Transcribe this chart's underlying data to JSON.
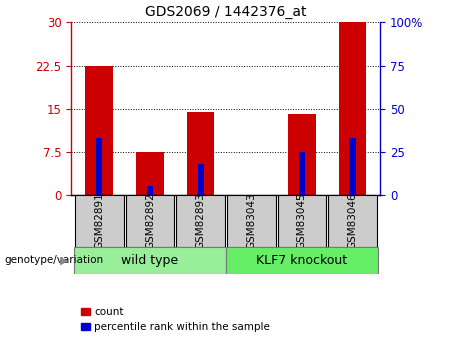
{
  "title": "GDS2069 / 1442376_at",
  "samples": [
    "GSM82891",
    "GSM82892",
    "GSM82893",
    "GSM83043",
    "GSM83045",
    "GSM83046"
  ],
  "count_values": [
    22.5,
    7.5,
    14.5,
    0.0,
    14.0,
    30.0
  ],
  "percentile_values": [
    33.0,
    5.0,
    18.0,
    0.0,
    25.0,
    33.0
  ],
  "ylim_left": [
    0,
    30
  ],
  "ylim_right": [
    0,
    100
  ],
  "yticks_left": [
    0,
    7.5,
    15,
    22.5,
    30
  ],
  "ytick_labels_left": [
    "0",
    "7.5",
    "15",
    "22.5",
    "30"
  ],
  "yticks_right": [
    0,
    25,
    50,
    75,
    100
  ],
  "ytick_labels_right": [
    "0",
    "25",
    "50",
    "75",
    "100%"
  ],
  "bar_color": "#cc0000",
  "percentile_color": "#0000cc",
  "bar_width": 0.55,
  "groups": [
    {
      "label": "wild type",
      "indices": [
        0,
        1,
        2
      ],
      "color": "#99ee99"
    },
    {
      "label": "KLF7 knockout",
      "indices": [
        3,
        4,
        5
      ],
      "color": "#66ee66"
    }
  ],
  "group_row_label": "genotype/variation",
  "legend_count_label": "count",
  "legend_percentile_label": "percentile rank within the sample",
  "tick_label_color_left": "#cc0000",
  "tick_label_color_right": "#0000cc",
  "grid_color": "black",
  "xticklabel_bg": "#cccccc",
  "fig_width": 4.61,
  "fig_height": 3.45,
  "dpi": 100
}
